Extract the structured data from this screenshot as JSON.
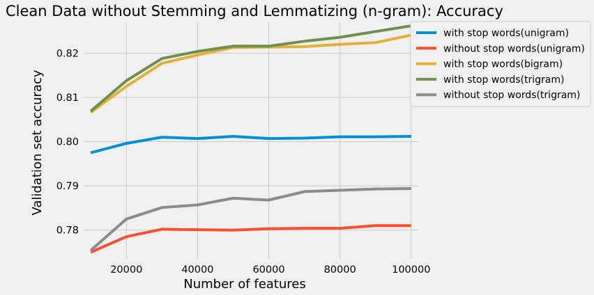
{
  "chart_data": {
    "type": "line",
    "title": "Clean Data without Stemming and Lemmatizing (n-gram): Accuracy",
    "xlabel": "Number of features",
    "ylabel": "Validation set accuracy",
    "xlim": [
      8000,
      102000
    ],
    "ylim": [
      0.7735,
      0.827
    ],
    "xticks": [
      20000,
      40000,
      60000,
      80000,
      100000
    ],
    "xtick_labels": [
      "20000",
      "40000",
      "60000",
      "80000",
      "100000"
    ],
    "yticks": [
      0.78,
      0.79,
      0.8,
      0.81,
      0.82
    ],
    "ytick_labels": [
      "0.78",
      "0.79",
      "0.80",
      "0.81",
      "0.82"
    ],
    "grid": true,
    "legend_position": "top-right-outside",
    "x": [
      10000,
      20000,
      30000,
      40000,
      50000,
      60000,
      70000,
      80000,
      90000,
      100000
    ],
    "series": [
      {
        "name": "with stop words(unigram)",
        "color": "#008fd5",
        "values": [
          0.7975,
          0.7996,
          0.801,
          0.8007,
          0.8012,
          0.8007,
          0.8008,
          0.8011,
          0.8011,
          0.8012
        ]
      },
      {
        "name": "without stop words(unigram)",
        "color": "#fc4f30",
        "values": [
          0.775,
          0.7785,
          0.7802,
          0.7801,
          0.78,
          0.7803,
          0.7804,
          0.7804,
          0.781,
          0.781
        ]
      },
      {
        "name": "with stop words(bigram)",
        "color": "#e5ae38",
        "values": [
          0.8066,
          0.8125,
          0.8177,
          0.8196,
          0.8213,
          0.8214,
          0.8215,
          0.822,
          0.8224,
          0.8241
        ]
      },
      {
        "name": "with stop words(trigram)",
        "color": "#6d904f",
        "values": [
          0.8069,
          0.8138,
          0.8188,
          0.8204,
          0.8216,
          0.8216,
          0.8227,
          0.8236,
          0.8249,
          0.8262
        ]
      },
      {
        "name": "without stop words(trigram)",
        "color": "#8b8b8b",
        "values": [
          0.7754,
          0.7825,
          0.7851,
          0.7857,
          0.7872,
          0.7868,
          0.7887,
          0.789,
          0.7893,
          0.7894
        ]
      }
    ]
  }
}
